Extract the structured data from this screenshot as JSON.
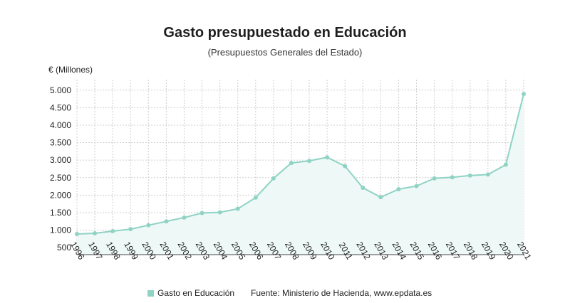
{
  "chart_data": {
    "type": "line",
    "title": "Gasto presupuestado en Educación",
    "subtitle": "(Presupuestos Generales del Estado)",
    "ylabel": "€ (Millones)",
    "xlabel": "",
    "ylim": [
      300,
      5300
    ],
    "yticks": [
      500,
      1000,
      1500,
      2000,
      2500,
      3000,
      3500,
      4000,
      4500,
      5000
    ],
    "ytick_labels": [
      "500",
      "1.000",
      "1.500",
      "2.000",
      "2.500",
      "3.000",
      "3.500",
      "4.000",
      "4.500",
      "5.000"
    ],
    "grid": true,
    "categories": [
      "1996",
      "1997",
      "1998",
      "1999",
      "2000",
      "2001",
      "2002",
      "2003",
      "2004",
      "2005",
      "2006",
      "2007",
      "2008",
      "2009",
      "2010",
      "2011",
      "2012",
      "2013",
      "2014",
      "2015",
      "2016",
      "2017",
      "2018",
      "2019",
      "2020",
      "2021"
    ],
    "series": [
      {
        "name": "Gasto en Educación",
        "values": [
          890,
          910,
          970,
          1030,
          1140,
          1250,
          1360,
          1490,
          1510,
          1610,
          1930,
          2480,
          2920,
          2980,
          3080,
          2830,
          2210,
          1940,
          2170,
          2260,
          2480,
          2510,
          2560,
          2590,
          2870,
          4890
        ]
      }
    ],
    "legend_position": "bottom",
    "source": "Fuente: Ministerio de Hacienda, www.epdata.es"
  },
  "colors": {
    "line": "#8fd3c4",
    "marker": "#8fd3c4",
    "fill": "#eef8f6",
    "grid": "#cfcfcf",
    "axis": "#444444"
  }
}
